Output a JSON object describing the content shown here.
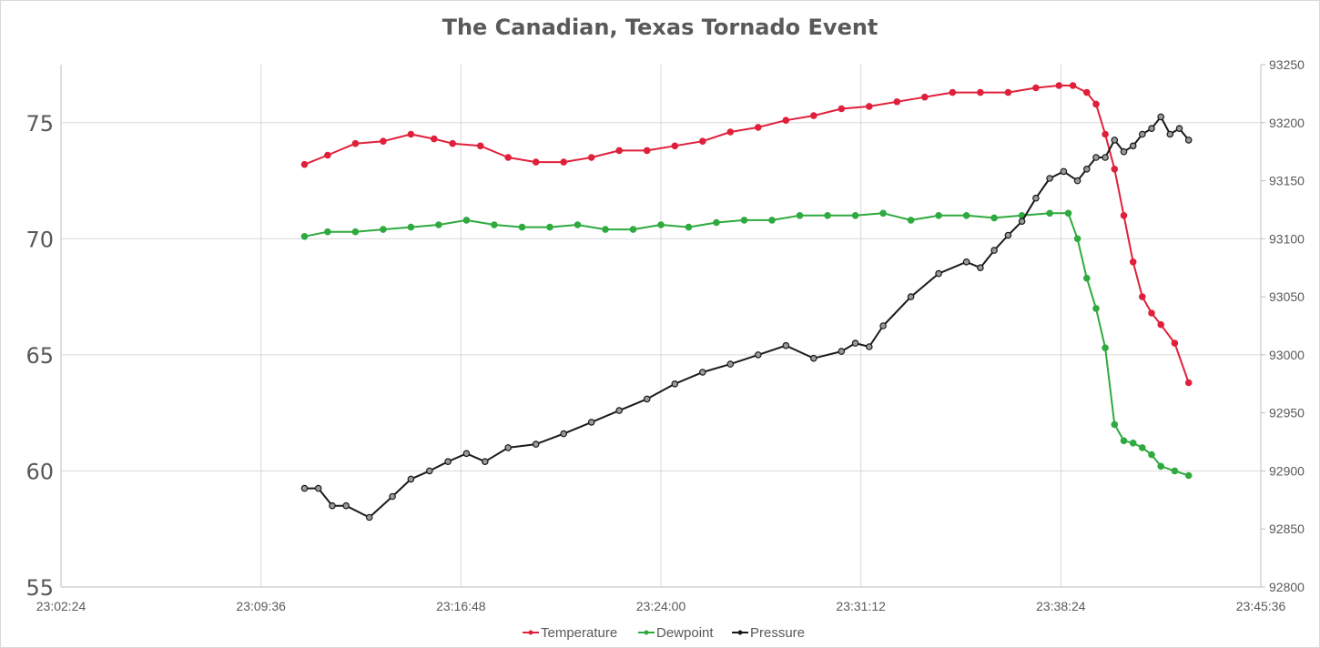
{
  "chart_data": {
    "type": "line",
    "title": "The Canadian, Texas Tornado Event",
    "xlabel": "",
    "ylabel": "",
    "x_axis": {
      "ticks": [
        "23:02:24",
        "23:09:36",
        "23:16:48",
        "23:24:00",
        "23:31:12",
        "23:38:24",
        "23:45:36"
      ],
      "range": [
        "23:02:24",
        "23:45:36"
      ]
    },
    "y_left": {
      "range": [
        55,
        77.5
      ],
      "ticks": [
        "55",
        "60",
        "65",
        "70",
        "75"
      ]
    },
    "y_right": {
      "range": [
        92800,
        93250
      ],
      "ticks": [
        "92800",
        "92850",
        "92900",
        "92950",
        "93000",
        "93050",
        "93100",
        "93150",
        "93200",
        "93250"
      ]
    },
    "grid": true,
    "legend_position": "bottom",
    "series": [
      {
        "name": "Temperature",
        "axis": "left",
        "color": "#e0203a",
        "x": [
          "23:11:10",
          "23:12:00",
          "23:13:00",
          "23:14:00",
          "23:15:00",
          "23:15:50",
          "23:16:30",
          "23:17:30",
          "23:18:30",
          "23:19:30",
          "23:20:30",
          "23:21:30",
          "23:22:30",
          "23:23:30",
          "23:24:30",
          "23:25:30",
          "23:26:30",
          "23:27:30",
          "23:28:30",
          "23:29:30",
          "23:30:30",
          "23:31:30",
          "23:32:30",
          "23:33:30",
          "23:34:30",
          "23:35:30",
          "23:36:30",
          "23:37:30",
          "23:38:20",
          "23:38:50",
          "23:39:20",
          "23:39:40",
          "23:40:00",
          "23:40:20",
          "23:40:40",
          "23:41:00",
          "23:41:20",
          "23:41:40",
          "23:42:00",
          "23:42:30",
          "23:43:00"
        ],
        "values": [
          73.2,
          73.6,
          74.1,
          74.2,
          74.5,
          74.3,
          74.1,
          74.0,
          73.5,
          73.3,
          73.3,
          73.5,
          73.8,
          73.8,
          74.0,
          74.2,
          74.6,
          74.8,
          75.1,
          75.3,
          75.6,
          75.7,
          75.9,
          76.1,
          76.3,
          76.3,
          76.3,
          76.5,
          76.6,
          76.6,
          76.3,
          75.8,
          74.5,
          73.0,
          71.0,
          69.0,
          67.5,
          66.8,
          66.3,
          65.5,
          63.8
        ]
      },
      {
        "name": "Dewpoint",
        "axis": "left",
        "color": "#2eaa3e",
        "x": [
          "23:11:10",
          "23:12:00",
          "23:13:00",
          "23:14:00",
          "23:15:00",
          "23:16:00",
          "23:17:00",
          "23:18:00",
          "23:19:00",
          "23:20:00",
          "23:21:00",
          "23:22:00",
          "23:23:00",
          "23:24:00",
          "23:25:00",
          "23:26:00",
          "23:27:00",
          "23:28:00",
          "23:29:00",
          "23:30:00",
          "23:31:00",
          "23:32:00",
          "23:33:00",
          "23:34:00",
          "23:35:00",
          "23:36:00",
          "23:37:00",
          "23:38:00",
          "23:38:40",
          "23:39:00",
          "23:39:20",
          "23:39:40",
          "23:40:00",
          "23:40:20",
          "23:40:40",
          "23:41:00",
          "23:41:20",
          "23:41:40",
          "23:42:00",
          "23:42:30",
          "23:43:00"
        ],
        "values": [
          70.1,
          70.3,
          70.3,
          70.4,
          70.5,
          70.6,
          70.8,
          70.6,
          70.5,
          70.5,
          70.6,
          70.4,
          70.4,
          70.6,
          70.5,
          70.7,
          70.8,
          70.8,
          71.0,
          71.0,
          71.0,
          71.1,
          70.8,
          71.0,
          71.0,
          70.9,
          71.0,
          71.1,
          71.1,
          70.0,
          68.3,
          67.0,
          65.3,
          62.0,
          61.3,
          61.2,
          61.0,
          60.7,
          60.2,
          60.0,
          59.8
        ]
      },
      {
        "name": "Pressure",
        "axis": "right",
        "color": "#1a1a1a",
        "x": [
          "23:11:10",
          "23:11:40",
          "23:12:10",
          "23:12:40",
          "23:13:30",
          "23:14:20",
          "23:15:00",
          "23:15:40",
          "23:16:20",
          "23:17:00",
          "23:17:40",
          "23:18:30",
          "23:19:30",
          "23:20:30",
          "23:21:30",
          "23:22:30",
          "23:23:30",
          "23:24:30",
          "23:25:30",
          "23:26:30",
          "23:27:30",
          "23:28:30",
          "23:29:30",
          "23:30:30",
          "23:31:00",
          "23:31:30",
          "23:32:00",
          "23:33:00",
          "23:34:00",
          "23:35:00",
          "23:35:30",
          "23:36:00",
          "23:36:30",
          "23:37:00",
          "23:37:30",
          "23:38:00",
          "23:38:30",
          "23:39:00",
          "23:39:20",
          "23:39:40",
          "23:40:00",
          "23:40:20",
          "23:40:40",
          "23:41:00",
          "23:41:20",
          "23:41:40",
          "23:42:00",
          "23:42:20",
          "23:42:40",
          "23:43:00"
        ],
        "values": [
          92885,
          92885,
          92870,
          92870,
          92860,
          92878,
          92893,
          92900,
          92908,
          92915,
          92908,
          92920,
          92923,
          92932,
          92942,
          92952,
          92962,
          92975,
          92985,
          92992,
          93000,
          93008,
          92997,
          93003,
          93010,
          93007,
          93025,
          93050,
          93070,
          93080,
          93075,
          93090,
          93103,
          93115,
          93135,
          93152,
          93158,
          93150,
          93160,
          93170,
          93170,
          93185,
          93175,
          93180,
          93190,
          93195,
          93205,
          93190,
          93195,
          93185
        ]
      }
    ]
  },
  "legend": [
    {
      "label": "Temperature",
      "color": "#e0203a"
    },
    {
      "label": "Dewpoint",
      "color": "#2eaa3e"
    },
    {
      "label": "Pressure",
      "color": "#1a1a1a"
    }
  ]
}
